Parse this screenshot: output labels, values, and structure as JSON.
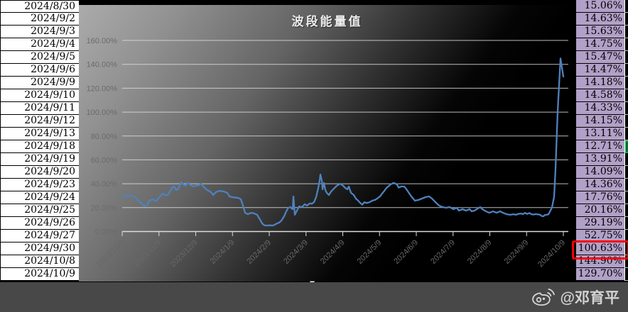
{
  "table": {
    "dates": [
      "2024/8/30",
      "2024/9/2",
      "2024/9/3",
      "2024/9/4",
      "2024/9/5",
      "2024/9/6",
      "2024/9/9",
      "2024/9/10",
      "2024/9/11",
      "2024/9/12",
      "2024/9/13",
      "2024/9/18",
      "2024/9/19",
      "2024/9/20",
      "2024/9/23",
      "2024/9/24",
      "2024/9/25",
      "2024/9/26",
      "2024/9/27",
      "2024/9/30",
      "2024/10/8",
      "2024/10/9"
    ],
    "values": [
      "15.06%",
      "14.63%",
      "15.63%",
      "14.75%",
      "15.47%",
      "14.47%",
      "14.18%",
      "14.58%",
      "14.33%",
      "14.15%",
      "13.11%",
      "12.71%",
      "13.91%",
      "14.09%",
      "14.36%",
      "17.76%",
      "20.16%",
      "29.19%",
      "52.75%",
      "100.63%",
      "144.90%",
      "129.70%"
    ],
    "highlights": {
      "red_box_row_index": 19,
      "green_border_row_index": 11
    }
  },
  "chart_data": {
    "type": "line",
    "title": "波段能量值",
    "ylabel": "",
    "xlabel": "",
    "ylim": [
      0,
      160
    ],
    "grid": true,
    "legend": "none",
    "y_ticks": [
      "160.00%",
      "140.00%",
      "120.00%",
      "100.00%",
      "80.00%",
      "60.00%",
      "40.00%",
      "20.00%",
      "0.00%"
    ],
    "y_tick_values": [
      160,
      140,
      120,
      100,
      80,
      60,
      40,
      20,
      0
    ],
    "x_labels": [
      "2023/10/9",
      "2023/11/9",
      "2023/12/9",
      "2024/1/9",
      "2024/2/9",
      "2024/3/9",
      "2024/4/9",
      "2024/5/9",
      "2024/6/9",
      "2024/7/9",
      "2024/8/9",
      "2024/9/9",
      "2024/10/9"
    ],
    "series": [
      {
        "name": "波段能量值",
        "points": [
          [
            0,
            29
          ],
          [
            4,
            30
          ],
          [
            8,
            29.5
          ],
          [
            12,
            30.2
          ],
          [
            16,
            29.7
          ],
          [
            20,
            27.6
          ],
          [
            24,
            25
          ],
          [
            28,
            22.9
          ],
          [
            32,
            21.2
          ],
          [
            35,
            22
          ],
          [
            38,
            25.8
          ],
          [
            43,
            27
          ],
          [
            47,
            25.4
          ],
          [
            51,
            27.5
          ],
          [
            55,
            30.5
          ],
          [
            58,
            31.8
          ],
          [
            61,
            30
          ],
          [
            65,
            31.2
          ],
          [
            70,
            36.5
          ],
          [
            73,
            37.7
          ],
          [
            76,
            34.7
          ],
          [
            79,
            35.9
          ],
          [
            83,
            41.3
          ],
          [
            86,
            39.5
          ],
          [
            89,
            38.5
          ],
          [
            93,
            40.7
          ],
          [
            96,
            38.8
          ],
          [
            100,
            37.7
          ],
          [
            104,
            38.5
          ],
          [
            108,
            38.9
          ],
          [
            111,
            40
          ],
          [
            115,
            37.1
          ],
          [
            120,
            34.7
          ],
          [
            125,
            33
          ],
          [
            128,
            30.6
          ],
          [
            132,
            33
          ],
          [
            137,
            34.1
          ],
          [
            143,
            33.5
          ],
          [
            148,
            32.3
          ],
          [
            151,
            29.4
          ],
          [
            155,
            28.8
          ],
          [
            160,
            28.4
          ],
          [
            164,
            28
          ],
          [
            167,
            27
          ],
          [
            170,
            21.7
          ],
          [
            173,
            15.7
          ],
          [
            177,
            14.5
          ],
          [
            180,
            15.3
          ],
          [
            183,
            15.7
          ],
          [
            187,
            14.8
          ],
          [
            190,
            14
          ],
          [
            193,
            11
          ],
          [
            197,
            6.8
          ],
          [
            200,
            5.2
          ],
          [
            204,
            5
          ],
          [
            208,
            5.2
          ],
          [
            211,
            5
          ],
          [
            214,
            5.4
          ],
          [
            218,
            6.8
          ],
          [
            221,
            7.5
          ],
          [
            224,
            9
          ],
          [
            228,
            12.8
          ],
          [
            231,
            17
          ],
          [
            234,
            20
          ],
          [
            237,
            20.5
          ],
          [
            239,
            19
          ],
          [
            240,
            18.7
          ],
          [
            241,
            29.4
          ],
          [
            243,
            14
          ],
          [
            246,
            17.5
          ],
          [
            249,
            21
          ],
          [
            253,
            20.5
          ],
          [
            257,
            22.9
          ],
          [
            260,
            21.7
          ],
          [
            264,
            23.5
          ],
          [
            267,
            23.3
          ],
          [
            270,
            24.6
          ],
          [
            273,
            28.8
          ],
          [
            276,
            36.5
          ],
          [
            278,
            43
          ],
          [
            279,
            47.8
          ],
          [
            281,
            42.5
          ],
          [
            282,
            35.3
          ],
          [
            284,
            40.7
          ],
          [
            286,
            34.7
          ],
          [
            288,
            32.4
          ],
          [
            291,
            30.6
          ],
          [
            294,
            33.5
          ],
          [
            297,
            35.3
          ],
          [
            302,
            38.3
          ],
          [
            307,
            40.1
          ],
          [
            311,
            38.3
          ],
          [
            314,
            36.5
          ],
          [
            317,
            35.3
          ],
          [
            319,
            37.7
          ],
          [
            322,
            32.4
          ],
          [
            326,
            30.6
          ],
          [
            329,
            27.5
          ],
          [
            332,
            26
          ],
          [
            335,
            24
          ],
          [
            338,
            22.5
          ],
          [
            341,
            24.6
          ],
          [
            344,
            23.8
          ],
          [
            348,
            24.5
          ],
          [
            352,
            25.8
          ],
          [
            356,
            26.5
          ],
          [
            359,
            27.6
          ],
          [
            363,
            29.5
          ],
          [
            366,
            31.8
          ],
          [
            369,
            34
          ],
          [
            372,
            36.5
          ],
          [
            375,
            38
          ],
          [
            378,
            39.5
          ],
          [
            382,
            40.7
          ],
          [
            385,
            40
          ],
          [
            387,
            39.2
          ],
          [
            389,
            36.8
          ],
          [
            393,
            37.7
          ],
          [
            397,
            37.7
          ],
          [
            400,
            35.5
          ],
          [
            404,
            32
          ],
          [
            407,
            29.4
          ],
          [
            412,
            25.8
          ],
          [
            417,
            26.4
          ],
          [
            422,
            27.6
          ],
          [
            427,
            28.8
          ],
          [
            432,
            29.4
          ],
          [
            436,
            27.6
          ],
          [
            441,
            24.6
          ],
          [
            446,
            21.7
          ],
          [
            451,
            20.5
          ],
          [
            456,
            19.9
          ],
          [
            461,
            20.5
          ],
          [
            466,
            18.7
          ],
          [
            471,
            19.9
          ],
          [
            474,
            17.5
          ],
          [
            479,
            18.7
          ],
          [
            484,
            17.5
          ],
          [
            489,
            18.7
          ],
          [
            492,
            16.9
          ],
          [
            496,
            17.5
          ],
          [
            499,
            18.7
          ],
          [
            504,
            20.5
          ],
          [
            507,
            18.7
          ],
          [
            512,
            16.9
          ],
          [
            517,
            15.7
          ],
          [
            522,
            16.9
          ],
          [
            527,
            15.7
          ],
          [
            532,
            16.9
          ],
          [
            536,
            15.7
          ],
          [
            541,
            14.5
          ],
          [
            546,
            14
          ],
          [
            551,
            14.5
          ],
          [
            554,
            14
          ],
          [
            558,
            14.8
          ],
          [
            561,
            15.06
          ],
          [
            564,
            14.63
          ],
          [
            567,
            15.63
          ],
          [
            570,
            14.75
          ],
          [
            573,
            15.47
          ],
          [
            576,
            14.47
          ],
          [
            579,
            14.18
          ],
          [
            582,
            14.58
          ],
          [
            585,
            14.33
          ],
          [
            588,
            14.15
          ],
          [
            590,
            13.11
          ],
          [
            593,
            12.71
          ],
          [
            595,
            13.91
          ],
          [
            598,
            14.09
          ],
          [
            600,
            14.36
          ],
          [
            603,
            17.76
          ],
          [
            605,
            20.16
          ],
          [
            608,
            29.19
          ],
          [
            610,
            52.75
          ],
          [
            613,
            100.63
          ],
          [
            617,
            144.9
          ],
          [
            621,
            129.7
          ]
        ]
      }
    ],
    "colors": {
      "line": "#4f81bd",
      "gridline": "#dcdcdc",
      "axis_label": "#6b6b6b",
      "x_label": "#686868",
      "title": "#ededed"
    }
  },
  "colors": {
    "cell_purple": "#b1a0c7",
    "highlight_red": "#ff0000",
    "highlight_green": "#00b050",
    "bottom_bar": "#484848"
  },
  "watermark": {
    "text": "@邓育平",
    "icon": "weibo-icon"
  }
}
